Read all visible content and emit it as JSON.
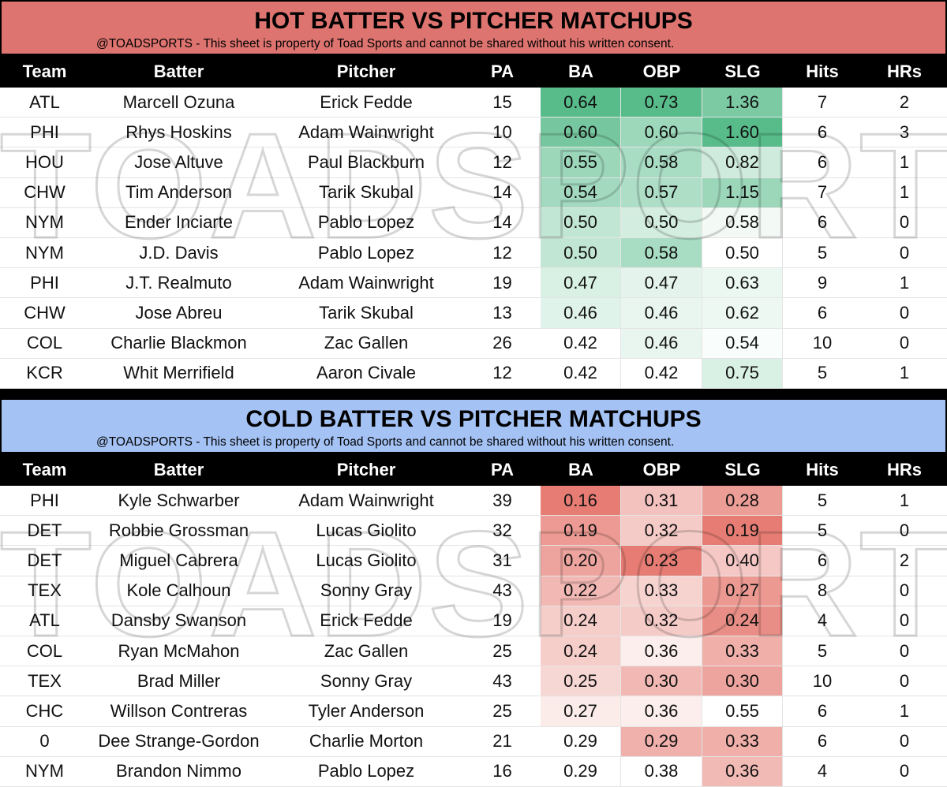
{
  "watermark": "TOADSPORTS",
  "sections": [
    {
      "title": "HOT BATTER VS PITCHER MATCHUPS",
      "subtitle": "@TOADSPORTS - This sheet is property of Toad Sports and cannot be shared without his written consent.",
      "title_color": "#de7470",
      "shade": {
        "color": "#57bb8a",
        "darker": "higher"
      },
      "headers": [
        "Team",
        "Batter",
        "Pitcher",
        "PA",
        "BA",
        "OBP",
        "SLG",
        "Hits",
        "HRs"
      ],
      "rows": [
        [
          "ATL",
          "Marcell Ozuna",
          "Erick Fedde",
          "15",
          "0.64",
          "0.73",
          "1.36",
          "7",
          "2"
        ],
        [
          "PHI",
          "Rhys Hoskins",
          "Adam Wainwright",
          "10",
          "0.60",
          "0.60",
          "1.60",
          "6",
          "3"
        ],
        [
          "HOU",
          "Jose Altuve",
          "Paul Blackburn",
          "12",
          "0.55",
          "0.58",
          "0.82",
          "6",
          "1"
        ],
        [
          "CHW",
          "Tim Anderson",
          "Tarik Skubal",
          "14",
          "0.54",
          "0.57",
          "1.15",
          "7",
          "1"
        ],
        [
          "NYM",
          "Ender Inciarte",
          "Pablo Lopez",
          "14",
          "0.50",
          "0.50",
          "0.58",
          "6",
          "0"
        ],
        [
          "NYM",
          "J.D. Davis",
          "Pablo Lopez",
          "12",
          "0.50",
          "0.58",
          "0.50",
          "5",
          "0"
        ],
        [
          "PHI",
          "J.T. Realmuto",
          "Adam Wainwright",
          "19",
          "0.47",
          "0.47",
          "0.63",
          "9",
          "1"
        ],
        [
          "CHW",
          "Jose Abreu",
          "Tarik Skubal",
          "13",
          "0.46",
          "0.46",
          "0.62",
          "6",
          "0"
        ],
        [
          "COL",
          "Charlie Blackmon",
          "Zac Gallen",
          "26",
          "0.42",
          "0.46",
          "0.54",
          "10",
          "0"
        ],
        [
          "KCR",
          "Whit Merrifield",
          "Aaron Civale",
          "12",
          "0.42",
          "0.42",
          "0.75",
          "5",
          "1"
        ]
      ]
    },
    {
      "title": "COLD BATTER VS PITCHER MATCHUPS",
      "subtitle": "@TOADSPORTS - This sheet is property of Toad Sports and cannot be shared without his written consent.",
      "title_color": "#a4c2f4",
      "shade": {
        "color": "#e67c73",
        "darker": "lower"
      },
      "headers": [
        "Team",
        "Batter",
        "Pitcher",
        "PA",
        "BA",
        "OBP",
        "SLG",
        "Hits",
        "HRs"
      ],
      "rows": [
        [
          "PHI",
          "Kyle Schwarber",
          "Adam Wainwright",
          "39",
          "0.16",
          "0.31",
          "0.28",
          "5",
          "1"
        ],
        [
          "DET",
          "Robbie Grossman",
          "Lucas Giolito",
          "32",
          "0.19",
          "0.32",
          "0.19",
          "5",
          "0"
        ],
        [
          "DET",
          "Miguel Cabrera",
          "Lucas Giolito",
          "31",
          "0.20",
          "0.23",
          "0.40",
          "6",
          "2"
        ],
        [
          "TEX",
          "Kole Calhoun",
          "Sonny Gray",
          "43",
          "0.22",
          "0.33",
          "0.27",
          "8",
          "0"
        ],
        [
          "ATL",
          "Dansby Swanson",
          "Erick Fedde",
          "19",
          "0.24",
          "0.32",
          "0.24",
          "4",
          "0"
        ],
        [
          "COL",
          "Ryan McMahon",
          "Zac Gallen",
          "25",
          "0.24",
          "0.36",
          "0.33",
          "5",
          "0"
        ],
        [
          "TEX",
          "Brad Miller",
          "Sonny Gray",
          "43",
          "0.25",
          "0.30",
          "0.30",
          "10",
          "0"
        ],
        [
          "CHC",
          "Willson Contreras",
          "Tyler Anderson",
          "25",
          "0.27",
          "0.36",
          "0.55",
          "6",
          "1"
        ],
        [
          "0",
          "Dee Strange-Gordon",
          "Charlie Morton",
          "21",
          "0.29",
          "0.29",
          "0.33",
          "6",
          "0"
        ],
        [
          "NYM",
          "Brandon Nimmo",
          "Pablo Lopez",
          "16",
          "0.29",
          "0.38",
          "0.36",
          "4",
          "0"
        ]
      ]
    }
  ]
}
